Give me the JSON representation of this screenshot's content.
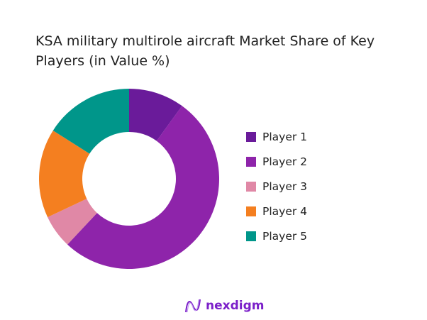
{
  "chart_data": {
    "type": "pie",
    "donut": true,
    "title": "KSA military multirole aircraft Market Share of Key Players (in Value %)",
    "legend_position": "right",
    "categories": [
      "Player 1",
      "Player 2",
      "Player 3",
      "Player 4",
      "Player 5"
    ],
    "values": [
      10,
      52,
      6,
      16,
      16
    ],
    "colors": [
      "#6a1b9a",
      "#8e24aa",
      "#e088a6",
      "#f47f20",
      "#00968a"
    ]
  },
  "logo": {
    "text": "nexdigm",
    "color": "#7b1fc9"
  }
}
